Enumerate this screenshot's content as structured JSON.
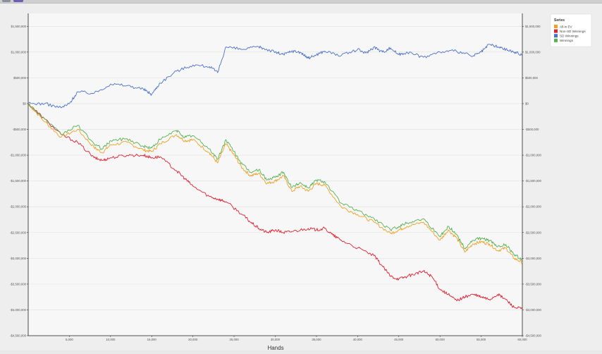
{
  "toolbar": {
    "icons": [
      "window-control-icon",
      "window-control-icon"
    ]
  },
  "chart_data": {
    "type": "line",
    "xlabel": "Hands",
    "ylabel": "",
    "xlim": [
      0,
      60000
    ],
    "ylim": [
      -4500000,
      1750000
    ],
    "x_ticks": [
      {
        "value": 5000,
        "label": "5,000"
      },
      {
        "value": 10000,
        "label": "10,000"
      },
      {
        "value": 15000,
        "label": "15,000"
      },
      {
        "value": 20000,
        "label": "20,000"
      },
      {
        "value": 25000,
        "label": "25,000"
      },
      {
        "value": 30000,
        "label": "30,000"
      },
      {
        "value": 35000,
        "label": "35,000"
      },
      {
        "value": 40000,
        "label": "40,000"
      },
      {
        "value": 45000,
        "label": "45,000"
      },
      {
        "value": 50000,
        "label": "50,000"
      },
      {
        "value": 55000,
        "label": "55,000"
      },
      {
        "value": 60000,
        "label": "60,000"
      }
    ],
    "y_ticks": [
      {
        "value": 1500000,
        "label": "$1,500,000"
      },
      {
        "value": 1000000,
        "label": "$1,000,000"
      },
      {
        "value": 500000,
        "label": "$500,000"
      },
      {
        "value": 0,
        "label": "$0"
      },
      {
        "value": -500000,
        "label": "-$500,000"
      },
      {
        "value": -1000000,
        "label": "-$1,000,000"
      },
      {
        "value": -1500000,
        "label": "-$1,500,000"
      },
      {
        "value": -2000000,
        "label": "-$2,000,000"
      },
      {
        "value": -2500000,
        "label": "-$2,500,000"
      },
      {
        "value": -3000000,
        "label": "-$3,000,000"
      },
      {
        "value": -3500000,
        "label": "-$3,500,000"
      },
      {
        "value": -4000000,
        "label": "-$4,000,000"
      },
      {
        "value": -4500000,
        "label": "-$4,500,000"
      }
    ],
    "grid": {
      "x": false,
      "y": true
    },
    "legend": {
      "title": "Series",
      "position": "top-right"
    },
    "series": [
      {
        "name": "All-in EV",
        "color": "#f0a020",
        "x": [
          0,
          2000,
          4000,
          6000,
          8000,
          9000,
          10000,
          12000,
          14000,
          15000,
          16000,
          18000,
          19000,
          20000,
          22000,
          23000,
          24000,
          25000,
          26000,
          27000,
          28000,
          29000,
          30000,
          31000,
          32000,
          33000,
          34000,
          35000,
          36000,
          38000,
          40000,
          42000,
          44000,
          45000,
          46000,
          48000,
          50000,
          51000,
          52000,
          53000,
          54000,
          55000,
          56000,
          57000,
          58000,
          59000,
          60000
        ],
        "values": [
          0,
          -350000,
          -650000,
          -500000,
          -850000,
          -950000,
          -800000,
          -750000,
          -900000,
          -930000,
          -780000,
          -600000,
          -720000,
          -700000,
          -950000,
          -1150000,
          -780000,
          -1000000,
          -1250000,
          -1400000,
          -1350000,
          -1550000,
          -1500000,
          -1400000,
          -1700000,
          -1600000,
          -1700000,
          -1550000,
          -1580000,
          -2000000,
          -2150000,
          -2300000,
          -2520000,
          -2450000,
          -2380000,
          -2300000,
          -2650000,
          -2450000,
          -2600000,
          -2880000,
          -2720000,
          -2680000,
          -2720000,
          -2850000,
          -2800000,
          -3000000,
          -3080000
        ]
      },
      {
        "name": "Non-SD Winnings",
        "color": "#e02030",
        "x": [
          0,
          2000,
          4000,
          6000,
          8000,
          9000,
          10000,
          12000,
          14000,
          15000,
          16000,
          18000,
          19000,
          20000,
          22000,
          23000,
          24000,
          26000,
          27000,
          28000,
          29000,
          30000,
          31000,
          32000,
          34000,
          35000,
          36000,
          37000,
          38000,
          40000,
          42000,
          43000,
          44000,
          45000,
          46000,
          47000,
          48000,
          49000,
          50000,
          51000,
          52000,
          53000,
          54000,
          55000,
          56000,
          57000,
          58000,
          59000,
          60000
        ],
        "values": [
          0,
          -300000,
          -600000,
          -750000,
          -1050000,
          -1100000,
          -1050000,
          -1000000,
          -1000000,
          -1050000,
          -1030000,
          -1300000,
          -1450000,
          -1600000,
          -1800000,
          -1850000,
          -1900000,
          -2150000,
          -2300000,
          -2420000,
          -2500000,
          -2450000,
          -2500000,
          -2480000,
          -2420000,
          -2450000,
          -2420000,
          -2550000,
          -2650000,
          -2800000,
          -2950000,
          -3150000,
          -3350000,
          -3400000,
          -3350000,
          -3300000,
          -3250000,
          -3350000,
          -3600000,
          -3700000,
          -3820000,
          -3750000,
          -3700000,
          -3750000,
          -3800000,
          -3700000,
          -3800000,
          -3950000,
          -3980000
        ]
      },
      {
        "name": "SD Winnings",
        "color": "#4a70c8",
        "x": [
          0,
          2000,
          4000,
          5000,
          6000,
          8000,
          10000,
          12000,
          14000,
          15000,
          16000,
          18000,
          20000,
          22000,
          23000,
          24000,
          26000,
          28000,
          29000,
          30000,
          31000,
          32000,
          33000,
          34000,
          35000,
          36000,
          38000,
          40000,
          41000,
          42000,
          43000,
          44000,
          45000,
          46000,
          48000,
          50000,
          52000,
          54000,
          55000,
          56000,
          57000,
          58000,
          59000,
          60000
        ],
        "values": [
          0,
          0,
          -80000,
          0,
          230000,
          200000,
          380000,
          350000,
          280000,
          180000,
          400000,
          630000,
          750000,
          720000,
          600000,
          1100000,
          1050000,
          1100000,
          1050000,
          1000000,
          950000,
          1020000,
          1000000,
          880000,
          950000,
          1020000,
          930000,
          1050000,
          980000,
          1100000,
          1000000,
          1080000,
          950000,
          1000000,
          900000,
          1000000,
          1020000,
          920000,
          1000000,
          1150000,
          1100000,
          1050000,
          1000000,
          950000
        ]
      },
      {
        "name": "Winnings",
        "color": "#55b050",
        "x": [
          0,
          2000,
          4000,
          6000,
          8000,
          9000,
          10000,
          12000,
          14000,
          15000,
          16000,
          18000,
          19000,
          20000,
          22000,
          23000,
          24000,
          25000,
          26000,
          27000,
          28000,
          29000,
          30000,
          31000,
          32000,
          33000,
          34000,
          35000,
          36000,
          38000,
          40000,
          42000,
          44000,
          45000,
          46000,
          48000,
          50000,
          51000,
          52000,
          53000,
          54000,
          55000,
          56000,
          57000,
          58000,
          59000,
          60000
        ],
        "values": [
          0,
          -300000,
          -600000,
          -420000,
          -780000,
          -880000,
          -720000,
          -680000,
          -830000,
          -860000,
          -700000,
          -520000,
          -650000,
          -620000,
          -880000,
          -1080000,
          -700000,
          -930000,
          -1180000,
          -1330000,
          -1280000,
          -1480000,
          -1430000,
          -1330000,
          -1630000,
          -1530000,
          -1630000,
          -1480000,
          -1510000,
          -1930000,
          -2080000,
          -2230000,
          -2450000,
          -2380000,
          -2310000,
          -2230000,
          -2580000,
          -2380000,
          -2530000,
          -2810000,
          -2650000,
          -2610000,
          -2650000,
          -2780000,
          -2730000,
          -2930000,
          -3020000
        ]
      }
    ]
  }
}
